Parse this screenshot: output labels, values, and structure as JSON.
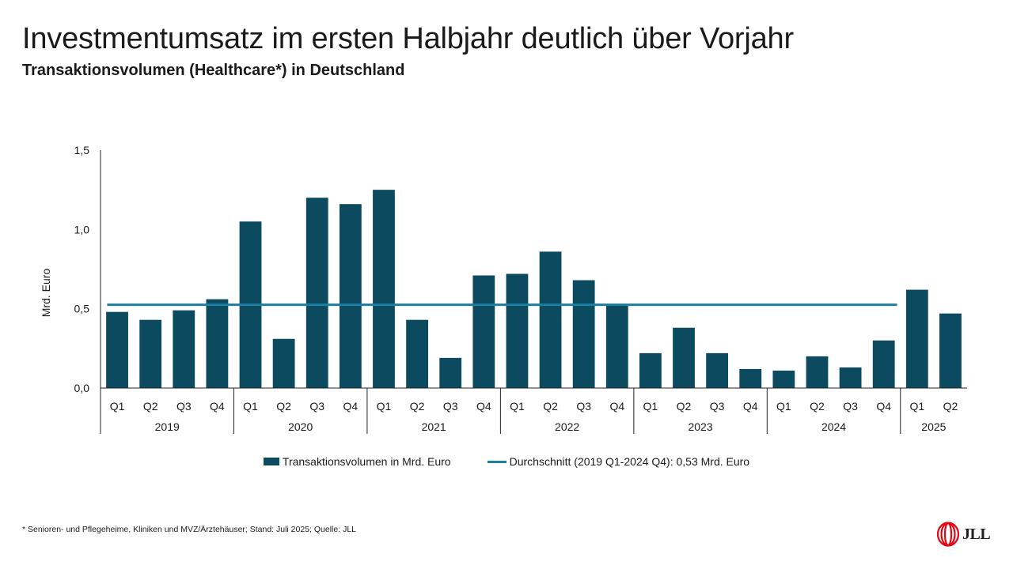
{
  "header": {
    "title": "Investmentumsatz im ersten Halbjahr deutlich über Vorjahr",
    "subtitle": "Transaktionsvolumen (Healthcare*) in Deutschland"
  },
  "chart_data": {
    "type": "bar",
    "title": "Transaktionsvolumen (Healthcare*) in Deutschland",
    "ylabel": "Mrd. Euro",
    "xlabel": "",
    "ylim": [
      0,
      1.5
    ],
    "yticks": [
      "0,0",
      "0,5",
      "1,0",
      "1,5"
    ],
    "categories": [
      "Q1",
      "Q2",
      "Q3",
      "Q4",
      "Q1",
      "Q2",
      "Q3",
      "Q4",
      "Q1",
      "Q2",
      "Q3",
      "Q4",
      "Q1",
      "Q2",
      "Q3",
      "Q4",
      "Q1",
      "Q2",
      "Q3",
      "Q4",
      "Q1",
      "Q2",
      "Q3",
      "Q4",
      "Q1",
      "Q2"
    ],
    "groups": [
      {
        "label": "2019",
        "count": 4
      },
      {
        "label": "2020",
        "count": 4
      },
      {
        "label": "2021",
        "count": 4
      },
      {
        "label": "2022",
        "count": 4
      },
      {
        "label": "2023",
        "count": 4
      },
      {
        "label": "2024",
        "count": 4
      },
      {
        "label": "2025",
        "count": 2
      }
    ],
    "series": [
      {
        "name": "Transaktionsvolumen in Mrd. Euro",
        "type": "bar",
        "color": "#0c4a60",
        "values": [
          0.48,
          0.43,
          0.49,
          0.56,
          1.05,
          0.31,
          1.2,
          1.16,
          1.25,
          0.43,
          0.19,
          0.71,
          0.72,
          0.86,
          0.68,
          0.53,
          0.22,
          0.38,
          0.22,
          0.12,
          0.11,
          0.2,
          0.13,
          0.3,
          0.62,
          0.47
        ]
      },
      {
        "name": "Durchschnitt (2019 Q1-2024 Q4): 0,53 Mrd. Euro",
        "type": "line",
        "color": "#1d7ea0",
        "value": 0.525,
        "span": [
          0,
          23
        ]
      }
    ]
  },
  "legend": {
    "bar_label": "Transaktionsvolumen in Mrd. Euro",
    "line_label": "Durchschnitt (2019 Q1-2024 Q4): 0,53 Mrd. Euro"
  },
  "footnote": "* Senioren- und Pflegeheime, Kliniken und MVZ/Ärztehäuser; Stand: Juli 2025; Quelle: JLL",
  "logo": {
    "text": "JLL",
    "color": "#e30613"
  }
}
